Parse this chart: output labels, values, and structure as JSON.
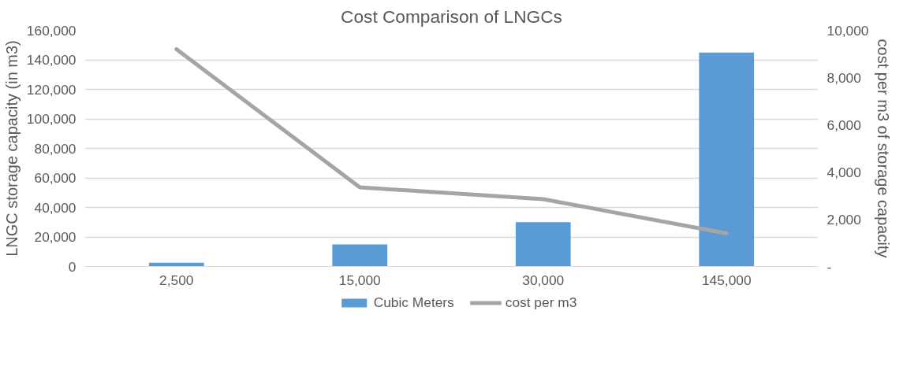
{
  "chart_data": {
    "type": "bar",
    "title": "Cost Comparison of LNGCs",
    "ylabel": "LNGC storage capacity (in m3)",
    "y2label": "cost per m3 of storage capacity",
    "categories": [
      "2,500",
      "15,000",
      "30,000",
      "145,000"
    ],
    "series": [
      {
        "name": "Cubic Meters",
        "color": "#5b9bd5",
        "values": [
          2500,
          15000,
          30000,
          145000
        ]
      },
      {
        "name": "cost per m3",
        "type": "line",
        "axis": "y2",
        "color": "#a5a5a5",
        "values": [
          9200,
          3350,
          2850,
          1400
        ]
      }
    ],
    "ylim": [
      0,
      160000
    ],
    "yticks": [
      {
        "value": 0,
        "label": "0"
      },
      {
        "value": 20000,
        "label": "20,000"
      },
      {
        "value": 40000,
        "label": "40,000"
      },
      {
        "value": 60000,
        "label": "60,000"
      },
      {
        "value": 80000,
        "label": "80,000"
      },
      {
        "value": 100000,
        "label": "100,000"
      },
      {
        "value": 120000,
        "label": "120,000"
      },
      {
        "value": 140000,
        "label": "140,000"
      },
      {
        "value": 160000,
        "label": "160,000"
      }
    ],
    "y2lim": [
      0,
      10000
    ],
    "y2ticks": [
      {
        "value": 0,
        "label": "-"
      },
      {
        "value": 2000,
        "label": "2,000"
      },
      {
        "value": 4000,
        "label": "4,000"
      },
      {
        "value": 6000,
        "label": "6,000"
      },
      {
        "value": 8000,
        "label": "8,000"
      },
      {
        "value": 10000,
        "label": "10,000"
      }
    ],
    "grid": "y",
    "legend": "bottom"
  }
}
